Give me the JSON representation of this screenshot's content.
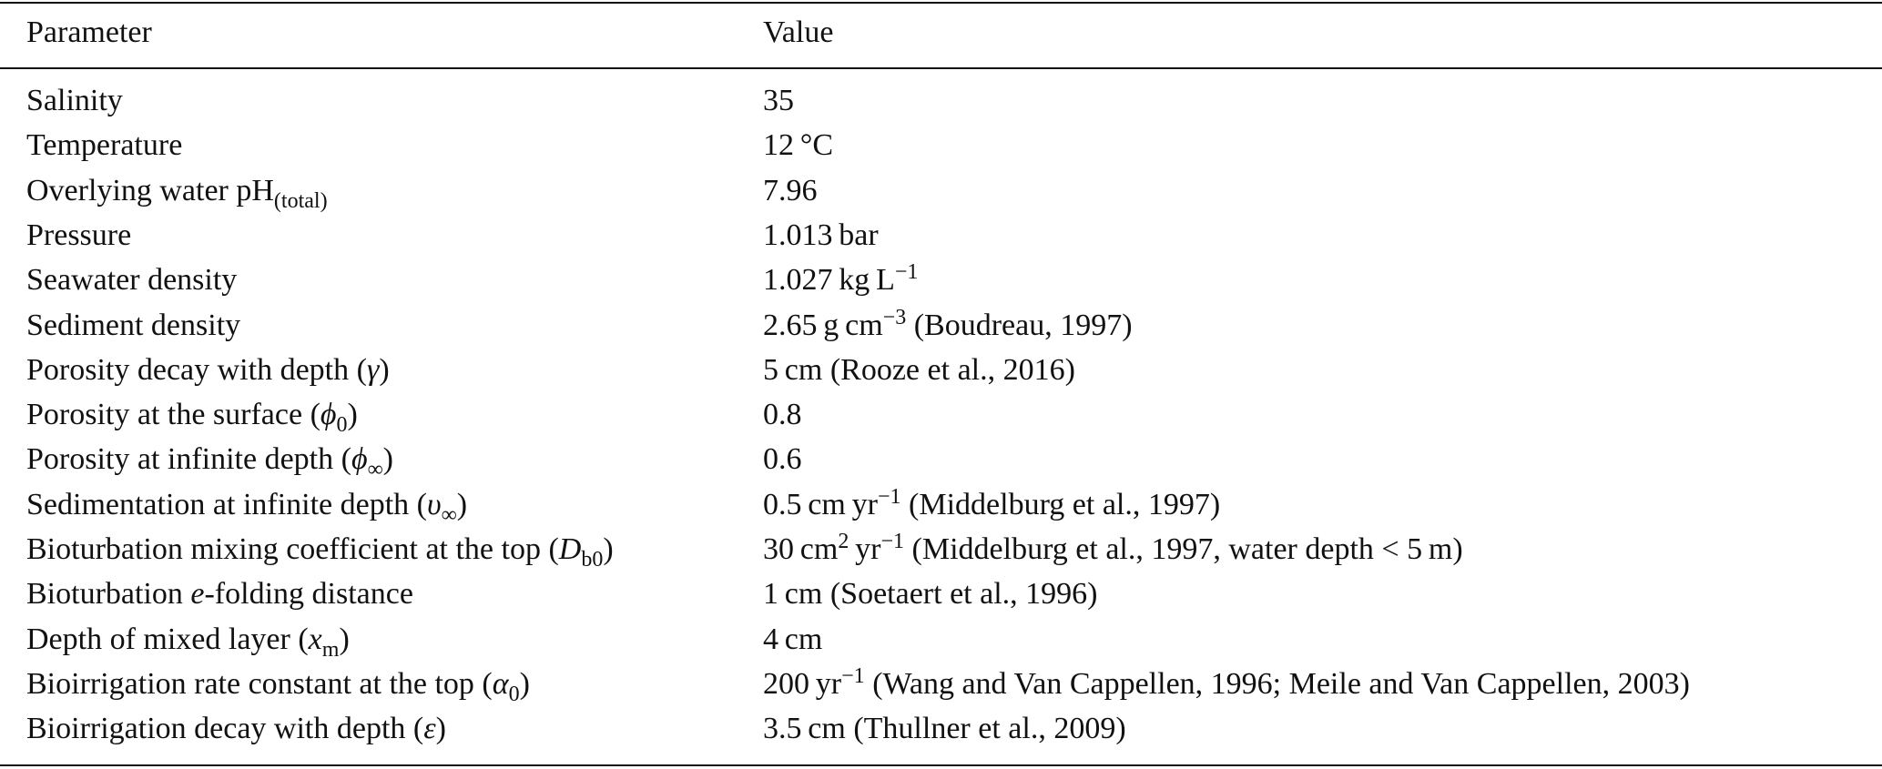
{
  "table": {
    "header": [
      "Parameter",
      "Value"
    ],
    "rows": [
      [
        [
          "Salinity"
        ],
        [
          "35"
        ]
      ],
      [
        [
          "Temperature"
        ],
        [
          "12 °C"
        ]
      ],
      [
        [
          "Overlying water pH",
          {
            "sub": "(total)"
          }
        ],
        [
          "7.96"
        ]
      ],
      [
        [
          "Pressure"
        ],
        [
          "1.013 bar"
        ]
      ],
      [
        [
          "Seawater density"
        ],
        [
          "1.027 kg L",
          {
            "sup": "−1"
          }
        ]
      ],
      [
        [
          "Sediment density"
        ],
        [
          "2.65 g cm",
          {
            "sup": "−3"
          },
          " (Boudreau, 1997)"
        ]
      ],
      [
        [
          "Porosity decay with depth (",
          {
            "i": "γ"
          },
          ")"
        ],
        [
          "5 cm (Rooze et al., 2016)"
        ]
      ],
      [
        [
          "Porosity at the surface (",
          {
            "i": "ϕ"
          },
          {
            "sub": "0"
          },
          ")"
        ],
        [
          "0.8"
        ]
      ],
      [
        [
          "Porosity at infinite depth (",
          {
            "i": "ϕ"
          },
          {
            "sub": "∞"
          },
          ")"
        ],
        [
          "0.6"
        ]
      ],
      [
        [
          "Sedimentation at infinite depth (",
          {
            "i": "υ"
          },
          {
            "sub": "∞"
          },
          ")"
        ],
        [
          "0.5 cm yr",
          {
            "sup": "−1"
          },
          " (Middelburg et al., 1997)"
        ]
      ],
      [
        [
          "Bioturbation mixing coefficient at the top (",
          {
            "i": "D"
          },
          {
            "sub": "b0"
          },
          ")"
        ],
        [
          "30 cm",
          {
            "sup": "2"
          },
          " yr",
          {
            "sup": "−1"
          },
          " (Middelburg et al., 1997, water depth < 5 m)"
        ]
      ],
      [
        [
          "Bioturbation ",
          {
            "i": "e"
          },
          "-folding distance"
        ],
        [
          "1 cm (Soetaert et al., 1996)"
        ]
      ],
      [
        [
          "Depth of mixed layer (",
          {
            "i": "x"
          },
          {
            "sub": "m"
          },
          ")"
        ],
        [
          "4 cm"
        ]
      ],
      [
        [
          "Bioirrigation rate constant at the top (",
          {
            "i": "α"
          },
          {
            "sub": "0"
          },
          ")"
        ],
        [
          "200 yr",
          {
            "sup": "−1"
          },
          " (Wang and Van Cappellen, 1996; Meile and Van Cappellen, 2003)"
        ]
      ],
      [
        [
          "Bioirrigation decay with depth (",
          {
            "i": "ε"
          },
          ")"
        ],
        [
          "3.5 cm (Thullner et al., 2009)"
        ]
      ]
    ]
  }
}
